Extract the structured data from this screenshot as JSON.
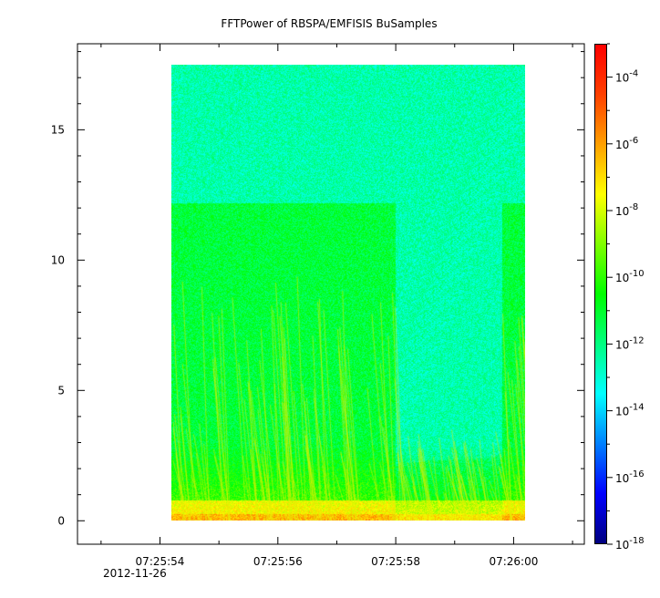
{
  "chart_data": {
    "type": "heatmap",
    "title": "FFTPower of RBSPA/EMFISIS  BuSamples",
    "date_label": "2012-11-26",
    "xlabel": "",
    "ylabel": "",
    "x_ticks": [
      "07:25:54",
      "07:25:56",
      "07:25:58",
      "07:26:00"
    ],
    "x_range": [
      "07:25:52.6",
      "07:26:01.2"
    ],
    "x_data_range": [
      "07:25:54.2",
      "07:26:00.2"
    ],
    "y_ticks": [
      0,
      5,
      10,
      15
    ],
    "ylim": [
      -0.9,
      18.3
    ],
    "y_data_range": [
      0,
      17.5
    ],
    "colorbar": {
      "scale": "log",
      "range": [
        1e-18,
        0.001
      ],
      "ticks": [
        {
          "base": "10",
          "exp": "-4"
        },
        {
          "base": "10",
          "exp": "-6"
        },
        {
          "base": "10",
          "exp": "-8"
        },
        {
          "base": "10",
          "exp": "-10"
        },
        {
          "base": "10",
          "exp": "-12"
        },
        {
          "base": "10",
          "exp": "-14"
        },
        {
          "base": "10",
          "exp": "-16"
        },
        {
          "base": "10",
          "exp": "-18"
        }
      ],
      "colormap": [
        "#00007f",
        "#0000ff",
        "#0080ff",
        "#00ffff",
        "#00ff80",
        "#00ff00",
        "#80ff00",
        "#ffff00",
        "#ffa000",
        "#ff4000",
        "#ff0000"
      ]
    },
    "features": {
      "background_level": 1e-13,
      "upper_region_level": 1e-12,
      "band_top": 12.2,
      "band_gap_time_range": [
        "07:25:58",
        "07:25:59.8"
      ],
      "low_band_level": 1e-07
    }
  }
}
